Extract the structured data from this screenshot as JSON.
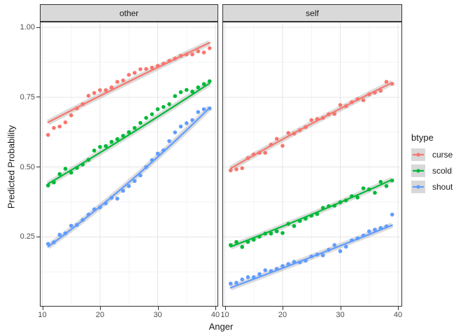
{
  "y_axis": {
    "label": "Predicted Probability",
    "ticks": [
      {
        "value": 1.0,
        "label": "1.00"
      },
      {
        "value": 0.75,
        "label": "0.75"
      },
      {
        "value": 0.5,
        "label": "0.50"
      },
      {
        "value": 0.25,
        "label": "0.25"
      }
    ]
  },
  "x_axis": {
    "label": "Anger",
    "ticks": [
      {
        "value": 10,
        "label": "10"
      },
      {
        "value": 20,
        "label": "20"
      },
      {
        "value": 30,
        "label": "30"
      },
      {
        "value": 40,
        "label": "40"
      }
    ]
  },
  "legend": {
    "title": "btype",
    "items": [
      {
        "label": "curse",
        "color": "#F8766D"
      },
      {
        "label": "scold",
        "color": "#00BA38"
      },
      {
        "label": "shout",
        "color": "#619CFF"
      }
    ]
  },
  "style": {
    "grid_major": "#e5e5e5",
    "grid_minor": "#f4f4f4",
    "panel_border": "#333333",
    "ribbon": "#9a9a9a",
    "ribbon_opacity": 0.35
  },
  "chart_data": {
    "type": "scatter",
    "title": "",
    "xlabel": "Anger",
    "ylabel": "Predicted Probability",
    "legend_title": "btype",
    "legend_position": "right",
    "grid": true,
    "x_domain": [
      10,
      40
    ],
    "y_domain": [
      0,
      1.018
    ],
    "x_minor": [
      15,
      25,
      35
    ],
    "y_minor": [
      0.125,
      0.375,
      0.625,
      0.875
    ],
    "facets": [
      {
        "name": "other",
        "series": [
          {
            "name": "curse",
            "color": "#F8766D",
            "trend": [
              [
                11,
                0.66
              ],
              [
                25,
                0.806
              ],
              [
                39,
                0.945
              ]
            ],
            "points": [
              [
                11,
                0.615
              ],
              [
                12,
                0.64
              ],
              [
                13,
                0.645
              ],
              [
                14,
                0.66
              ],
              [
                15,
                0.685
              ],
              [
                16,
                0.71
              ],
              [
                17,
                0.725
              ],
              [
                18,
                0.755
              ],
              [
                19,
                0.765
              ],
              [
                20,
                0.775
              ],
              [
                21,
                0.775
              ],
              [
                22,
                0.785
              ],
              [
                23,
                0.805
              ],
              [
                24,
                0.81
              ],
              [
                25,
                0.83
              ],
              [
                26,
                0.837
              ],
              [
                27,
                0.85
              ],
              [
                28,
                0.851
              ],
              [
                29,
                0.856
              ],
              [
                30,
                0.862
              ],
              [
                31,
                0.87
              ],
              [
                32,
                0.88
              ],
              [
                33,
                0.888
              ],
              [
                34,
                0.898
              ],
              [
                35,
                0.903
              ],
              [
                36,
                0.903
              ],
              [
                37,
                0.914
              ],
              [
                38,
                0.91
              ],
              [
                39,
                0.925
              ]
            ]
          },
          {
            "name": "scold",
            "color": "#00BA38",
            "trend": [
              [
                11,
                0.44
              ],
              [
                25,
                0.615
              ],
              [
                39,
                0.8
              ]
            ],
            "points": [
              [
                11,
                0.434
              ],
              [
                12,
                0.445
              ],
              [
                13,
                0.475
              ],
              [
                14,
                0.494
              ],
              [
                15,
                0.48
              ],
              [
                16,
                0.497
              ],
              [
                17,
                0.509
              ],
              [
                18,
                0.526
              ],
              [
                19,
                0.559
              ],
              [
                20,
                0.572
              ],
              [
                21,
                0.575
              ],
              [
                22,
                0.59
              ],
              [
                23,
                0.6
              ],
              [
                24,
                0.612
              ],
              [
                25,
                0.625
              ],
              [
                26,
                0.64
              ],
              [
                27,
                0.658
              ],
              [
                28,
                0.676
              ],
              [
                29,
                0.689
              ],
              [
                30,
                0.707
              ],
              [
                31,
                0.715
              ],
              [
                32,
                0.725
              ],
              [
                33,
                0.754
              ],
              [
                34,
                0.768
              ],
              [
                35,
                0.776
              ],
              [
                36,
                0.77
              ],
              [
                37,
                0.785
              ],
              [
                38,
                0.797
              ],
              [
                39,
                0.807
              ]
            ]
          },
          {
            "name": "shout",
            "color": "#619CFF",
            "trend": [
              [
                11,
                0.215
              ],
              [
                25,
                0.445
              ],
              [
                39,
                0.712
              ]
            ],
            "points": [
              [
                11,
                0.225
              ],
              [
                12,
                0.231
              ],
              [
                13,
                0.258
              ],
              [
                14,
                0.263
              ],
              [
                15,
                0.29
              ],
              [
                16,
                0.293
              ],
              [
                17,
                0.311
              ],
              [
                18,
                0.33
              ],
              [
                19,
                0.349
              ],
              [
                20,
                0.356
              ],
              [
                21,
                0.37
              ],
              [
                22,
                0.39
              ],
              [
                23,
                0.387
              ],
              [
                24,
                0.415
              ],
              [
                25,
                0.432
              ],
              [
                26,
                0.45
              ],
              [
                27,
                0.47
              ],
              [
                28,
                0.5
              ],
              [
                29,
                0.525
              ],
              [
                30,
                0.548
              ],
              [
                31,
                0.56
              ],
              [
                32,
                0.593
              ],
              [
                33,
                0.624
              ],
              [
                34,
                0.645
              ],
              [
                35,
                0.657
              ],
              [
                36,
                0.668
              ],
              [
                37,
                0.697
              ],
              [
                38,
                0.707
              ],
              [
                39,
                0.71
              ]
            ]
          }
        ]
      },
      {
        "name": "self",
        "series": [
          {
            "name": "curse",
            "color": "#F8766D",
            "trend": [
              [
                11,
                0.495
              ],
              [
                25,
                0.655
              ],
              [
                39,
                0.802
              ]
            ],
            "points": [
              [
                11,
                0.488
              ],
              [
                12,
                0.492
              ],
              [
                13,
                0.496
              ],
              [
                14,
                0.532
              ],
              [
                15,
                0.545
              ],
              [
                16,
                0.551
              ],
              [
                17,
                0.551
              ],
              [
                18,
                0.58
              ],
              [
                19,
                0.601
              ],
              [
                20,
                0.576
              ],
              [
                21,
                0.622
              ],
              [
                22,
                0.62
              ],
              [
                23,
                0.632
              ],
              [
                24,
                0.643
              ],
              [
                25,
                0.668
              ],
              [
                26,
                0.672
              ],
              [
                27,
                0.676
              ],
              [
                28,
                0.689
              ],
              [
                29,
                0.69
              ],
              [
                30,
                0.722
              ],
              [
                31,
                0.718
              ],
              [
                32,
                0.732
              ],
              [
                33,
                0.743
              ],
              [
                34,
                0.739
              ],
              [
                35,
                0.76
              ],
              [
                36,
                0.766
              ],
              [
                37,
                0.773
              ],
              [
                38,
                0.805
              ],
              [
                39,
                0.798
              ]
            ]
          },
          {
            "name": "scold",
            "color": "#00BA38",
            "trend": [
              [
                11,
                0.215
              ],
              [
                25,
                0.33
              ],
              [
                39,
                0.455
              ]
            ],
            "points": [
              [
                11,
                0.221
              ],
              [
                12,
                0.232
              ],
              [
                13,
                0.214
              ],
              [
                14,
                0.232
              ],
              [
                15,
                0.24
              ],
              [
                16,
                0.251
              ],
              [
                17,
                0.262
              ],
              [
                18,
                0.262
              ],
              [
                19,
                0.27
              ],
              [
                20,
                0.264
              ],
              [
                21,
                0.297
              ],
              [
                22,
                0.289
              ],
              [
                23,
                0.307
              ],
              [
                24,
                0.315
              ],
              [
                25,
                0.326
              ],
              [
                26,
                0.332
              ],
              [
                27,
                0.354
              ],
              [
                28,
                0.36
              ],
              [
                29,
                0.362
              ],
              [
                30,
                0.374
              ],
              [
                31,
                0.381
              ],
              [
                32,
                0.396
              ],
              [
                33,
                0.391
              ],
              [
                34,
                0.424
              ],
              [
                35,
                0.42
              ],
              [
                36,
                0.408
              ],
              [
                37,
                0.447
              ],
              [
                38,
                0.432
              ],
              [
                39,
                0.452
              ]
            ]
          },
          {
            "name": "shout",
            "color": "#619CFF",
            "trend": [
              [
                11,
                0.068
              ],
              [
                25,
                0.178
              ],
              [
                39,
                0.292
              ]
            ],
            "points": [
              [
                11,
                0.083
              ],
              [
                12,
                0.086
              ],
              [
                13,
                0.098
              ],
              [
                14,
                0.106
              ],
              [
                15,
                0.106
              ],
              [
                16,
                0.117
              ],
              [
                17,
                0.131
              ],
              [
                18,
                0.128
              ],
              [
                19,
                0.136
              ],
              [
                20,
                0.146
              ],
              [
                21,
                0.153
              ],
              [
                22,
                0.161
              ],
              [
                23,
                0.159
              ],
              [
                24,
                0.165
              ],
              [
                25,
                0.18
              ],
              [
                26,
                0.187
              ],
              [
                27,
                0.184
              ],
              [
                28,
                0.204
              ],
              [
                29,
                0.221
              ],
              [
                30,
                0.199
              ],
              [
                31,
                0.215
              ],
              [
                32,
                0.238
              ],
              [
                33,
                0.245
              ],
              [
                34,
                0.255
              ],
              [
                35,
                0.27
              ],
              [
                36,
                0.276
              ],
              [
                37,
                0.282
              ],
              [
                38,
                0.288
              ],
              [
                39,
                0.33
              ]
            ]
          }
        ]
      }
    ]
  }
}
